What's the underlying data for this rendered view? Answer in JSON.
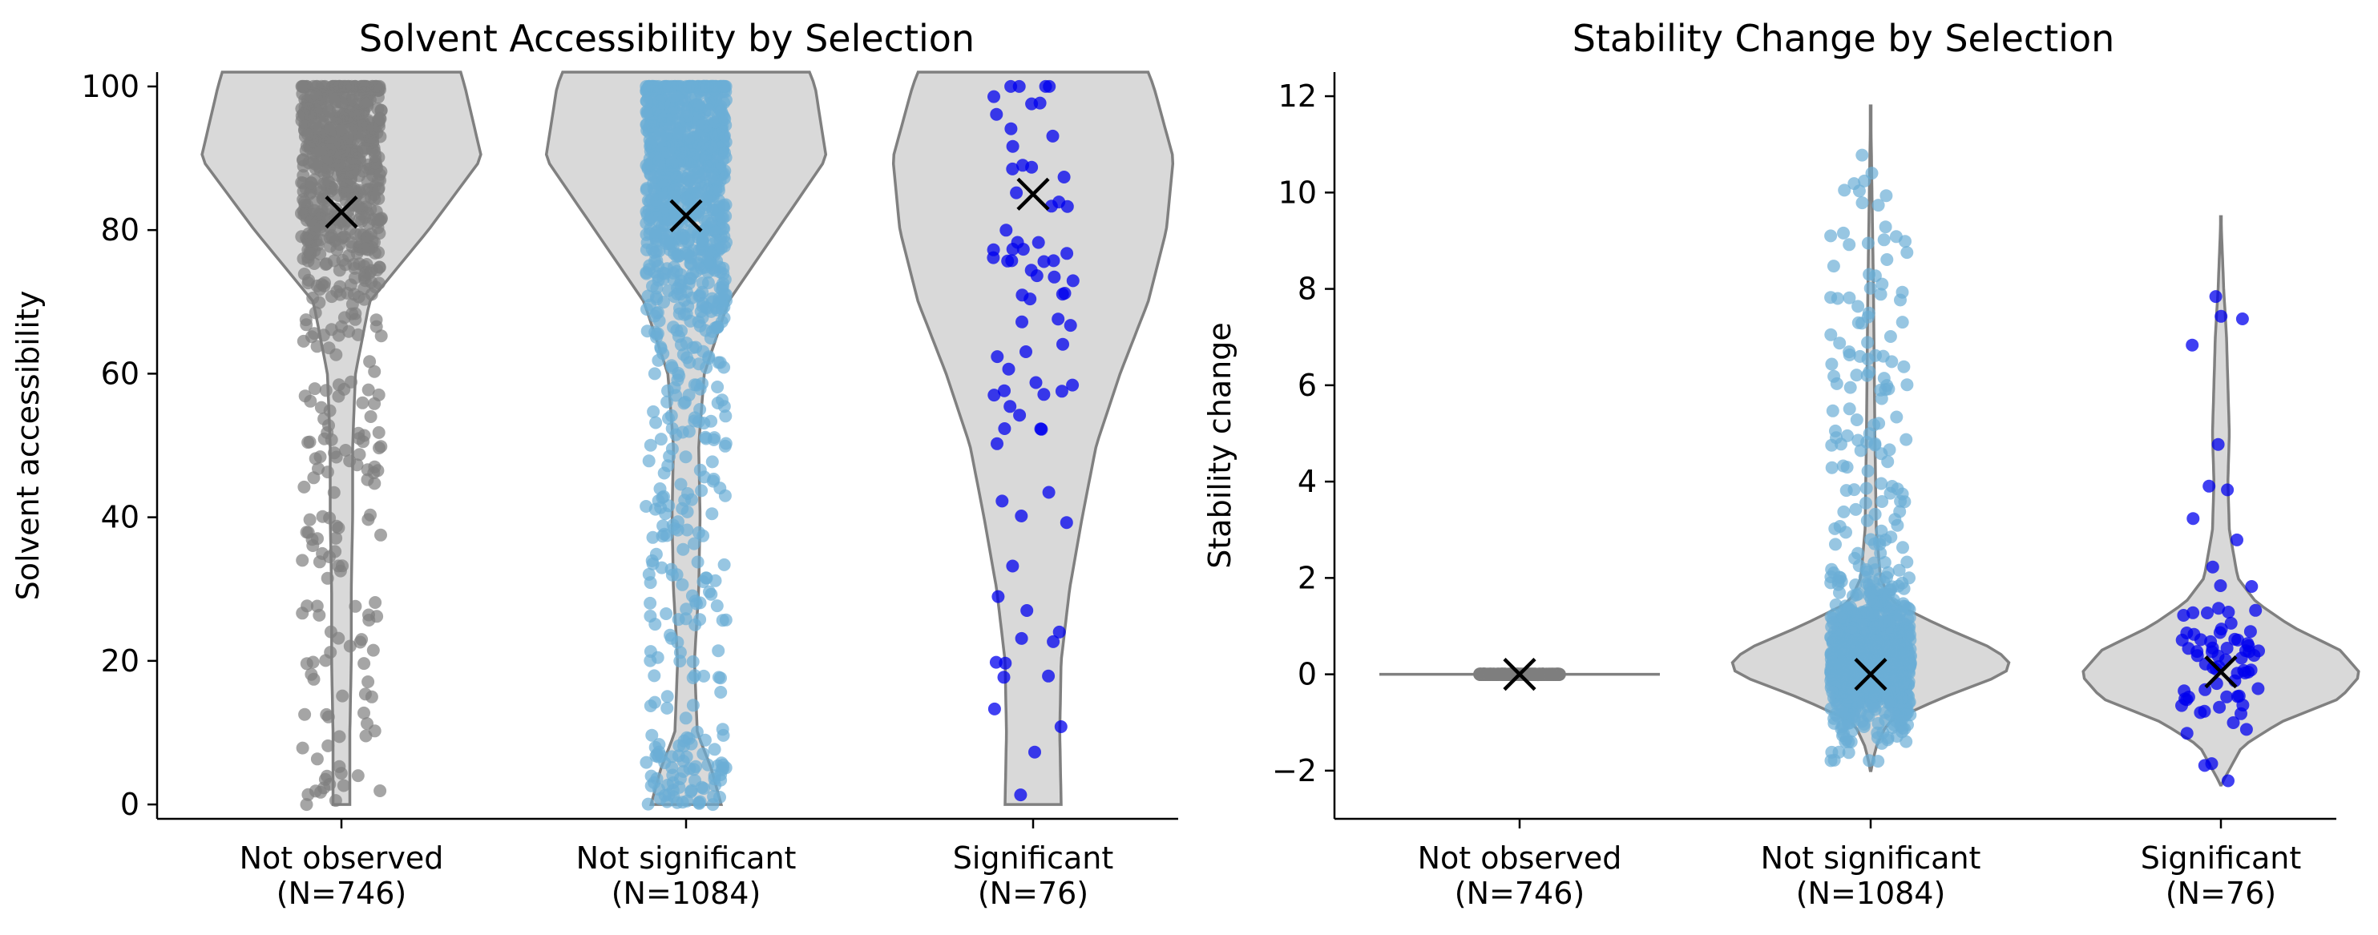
{
  "colors": {
    "not_observed": "#7f7f7f",
    "not_significant": "#6baed6",
    "significant": "#0000ee",
    "violin_fill": "#d9d9d9",
    "violin_edge": "#808080",
    "mean_marker": "#000000"
  },
  "chart_data": [
    {
      "type": "violin",
      "title": "Solvent Accessibility by Selection",
      "xlabel": "",
      "ylabel": "Solvent accessibility",
      "ylim": [
        -2,
        102
      ],
      "yticks": [
        0,
        20,
        40,
        60,
        80,
        100
      ],
      "grid": false,
      "categories": [
        {
          "label_line1": "Not observed",
          "label_line2": "(N=746)",
          "n": 746,
          "mean": 82.5,
          "color": "#7f7f7f",
          "density": [
            [
              0,
              0.06
            ],
            [
              10,
              0.06
            ],
            [
              20,
              0.07
            ],
            [
              30,
              0.07
            ],
            [
              40,
              0.08
            ],
            [
              50,
              0.08
            ],
            [
              60,
              0.1
            ],
            [
              70,
              0.2
            ],
            [
              80,
              0.62
            ],
            [
              90,
              1.0
            ],
            [
              100,
              0.88
            ],
            [
              102,
              0.85
            ]
          ]
        },
        {
          "label_line1": "Not significant",
          "label_line2": "(N=1084)",
          "n": 1084,
          "mean": 82.0,
          "color": "#6baed6",
          "density": [
            [
              0,
              0.25
            ],
            [
              5,
              0.18
            ],
            [
              10,
              0.08
            ],
            [
              20,
              0.06
            ],
            [
              30,
              0.09
            ],
            [
              40,
              0.1
            ],
            [
              50,
              0.09
            ],
            [
              60,
              0.13
            ],
            [
              70,
              0.3
            ],
            [
              80,
              0.65
            ],
            [
              90,
              1.0
            ],
            [
              100,
              0.92
            ],
            [
              102,
              0.88
            ]
          ]
        },
        {
          "label_line1": "Significant",
          "label_line2": "(N=76)",
          "n": 76,
          "mean": 85.0,
          "color": "#0000ee",
          "density": [
            [
              0,
              0.2
            ],
            [
              10,
              0.19
            ],
            [
              20,
              0.2
            ],
            [
              30,
              0.26
            ],
            [
              40,
              0.35
            ],
            [
              50,
              0.45
            ],
            [
              60,
              0.62
            ],
            [
              70,
              0.82
            ],
            [
              80,
              0.95
            ],
            [
              90,
              1.0
            ],
            [
              100,
              0.86
            ],
            [
              102,
              0.82
            ]
          ]
        }
      ]
    },
    {
      "type": "violin",
      "title": "Stability Change by Selection",
      "xlabel": "",
      "ylabel": "Stability change",
      "ylim": [
        -3,
        12.5
      ],
      "yticks": [
        -2,
        0,
        2,
        4,
        6,
        8,
        10,
        12
      ],
      "grid": false,
      "categories": [
        {
          "label_line1": "Not observed",
          "label_line2": "(N=746)",
          "n": 746,
          "mean": 0.0,
          "color": "#7f7f7f",
          "density": [
            [
              -0.02,
              1.0
            ],
            [
              0.02,
              1.0
            ]
          ]
        },
        {
          "label_line1": "Not significant",
          "label_line2": "(N=1084)",
          "n": 1084,
          "mean": 0.0,
          "color": "#6baed6",
          "density": [
            [
              -2.0,
              0.0
            ],
            [
              -1.5,
              0.04
            ],
            [
              -1.0,
              0.12
            ],
            [
              -0.5,
              0.5
            ],
            [
              0,
              0.95
            ],
            [
              0.2,
              1.0
            ],
            [
              0.5,
              0.9
            ],
            [
              1.0,
              0.5
            ],
            [
              1.5,
              0.15
            ],
            [
              2.0,
              0.07
            ],
            [
              3,
              0.04
            ],
            [
              5,
              0.03
            ],
            [
              8,
              0.02
            ],
            [
              11.8,
              0.0
            ]
          ]
        },
        {
          "label_line1": "Significant",
          "label_line2": "(N=76)",
          "n": 76,
          "mean": 0.05,
          "color": "#0000ee",
          "density": [
            [
              -2.3,
              0.0
            ],
            [
              -1.5,
              0.15
            ],
            [
              -1.0,
              0.42
            ],
            [
              -0.5,
              0.85
            ],
            [
              0,
              1.0
            ],
            [
              0.5,
              0.85
            ],
            [
              1.0,
              0.5
            ],
            [
              1.5,
              0.25
            ],
            [
              2.0,
              0.12
            ],
            [
              3,
              0.06
            ],
            [
              4,
              0.05
            ],
            [
              5,
              0.06
            ],
            [
              6,
              0.05
            ],
            [
              7,
              0.04
            ],
            [
              8,
              0.02
            ],
            [
              9.5,
              0.0
            ]
          ]
        }
      ]
    }
  ]
}
